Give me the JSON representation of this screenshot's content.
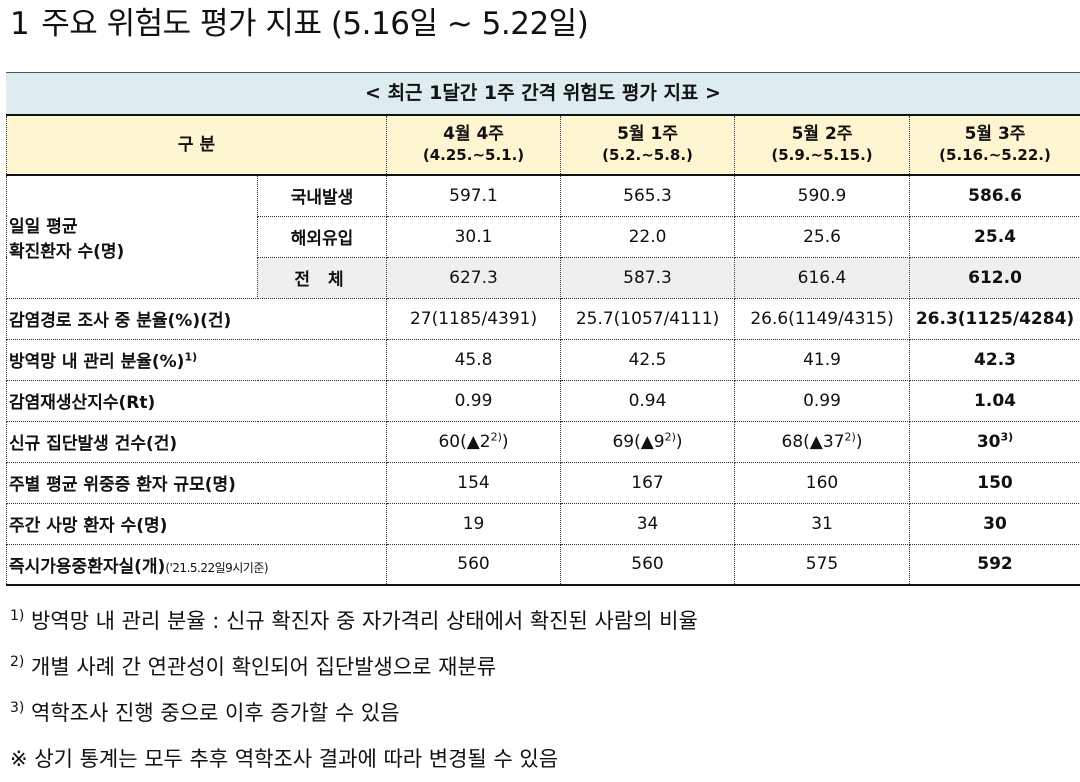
{
  "heading": {
    "num": "1",
    "text": "주요 위험도 평가 지표 (5.16일 ~ 5.22일)"
  },
  "caption": "< 최근 1달간 1주 간격 위험도 평가 지표 >",
  "table": {
    "corner": "구 분",
    "columns": [
      {
        "week": "4월 4주",
        "range": "(4.25.~5.1.)"
      },
      {
        "week": "5월 1주",
        "range": "(5.2.~5.8.)"
      },
      {
        "week": "5월 2주",
        "range": "(5.9.~5.15.)"
      },
      {
        "week": "5월 3주",
        "range": "(5.16.~5.22.)"
      }
    ],
    "daily": {
      "label_line1": "일일 평균",
      "label_line2": "확진환자 수(명)",
      "rows": [
        {
          "label": "국내발생",
          "values": [
            "597.1",
            "565.3",
            "590.9",
            "586.6"
          ]
        },
        {
          "label": "해외유입",
          "values": [
            "30.1",
            "22.0",
            "25.6",
            "25.4"
          ]
        },
        {
          "label": "전 체",
          "values": [
            "627.3",
            "587.3",
            "616.4",
            "612.0"
          ]
        }
      ]
    },
    "route_unknown": {
      "label": "감염경로 조사 중 분율(%)(건)",
      "values": [
        "27(1185/4391)",
        "25.7(1057/4111)",
        "26.6(1149/4315)",
        "26.3(1125/4284)"
      ]
    },
    "managed": {
      "label": "방역망 내 관리 분율(%)",
      "sup": "1)",
      "values": [
        "45.8",
        "42.5",
        "41.9",
        "42.3"
      ]
    },
    "rt": {
      "label": "감염재생산지수(Rt)",
      "values": [
        "0.99",
        "0.94",
        "0.99",
        "1.04"
      ]
    },
    "clusters": {
      "label": "신규 집단발생 건수(건)",
      "values": [
        {
          "main": "60(▲2",
          "sup": "2)",
          "close": ")"
        },
        {
          "main": "69(▲9",
          "sup": "2)",
          "close": ")"
        },
        {
          "main": "68(▲37",
          "sup": "2)",
          "close": ")"
        },
        {
          "main": "30",
          "sup": "3)",
          "close": ""
        }
      ]
    },
    "severe": {
      "label": "주별 평균 위중증 환자 규모(명)",
      "values": [
        "154",
        "167",
        "160",
        "150"
      ]
    },
    "deaths": {
      "label": "주간 사망 환자 수(명)",
      "values": [
        "19",
        "34",
        "31",
        "30"
      ]
    },
    "beds": {
      "label": "즉시가용중환자실(개)",
      "label_note": "('21.5.22일9시기준)",
      "values": [
        "560",
        "560",
        "575",
        "592"
      ]
    }
  },
  "notes": [
    {
      "sup": "1)",
      "text": " 방역망 내 관리 분율 : 신규 확진자 중 자가격리 상태에서 확진된 사람의 비율"
    },
    {
      "sup": "2)",
      "text": " 개별 사례 간 연관성이 확인되어 집단발생으로 재분류"
    },
    {
      "sup": "3)",
      "text": " 역학조사 진행 중으로 이후 증가할 수 있음"
    },
    {
      "sup": "",
      "text": "※ 상기 통계는 모두 추후 역학조사 결과에 따라 변경될 수 있음"
    }
  ]
}
